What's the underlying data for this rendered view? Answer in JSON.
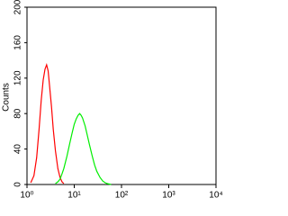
{
  "chart_data": {
    "type": "line",
    "y_label": "Counts",
    "xscale": "log",
    "xlim": [
      1,
      10000
    ],
    "ylim": [
      0,
      200
    ],
    "xticks": [
      {
        "value": 1,
        "label": "10⁰"
      },
      {
        "value": 10,
        "label": "10¹"
      },
      {
        "value": 100,
        "label": "10²"
      },
      {
        "value": 1000,
        "label": "10³"
      },
      {
        "value": 10000,
        "label": "10⁴"
      }
    ],
    "yticks": [
      0,
      40,
      80,
      120,
      160,
      200
    ],
    "x": [
      1.2,
      1.4,
      1.6,
      1.8,
      2.0,
      2.2,
      2.4,
      2.6,
      2.8,
      3.0,
      3.3,
      3.6,
      4,
      4.5,
      5,
      5.5,
      6,
      7,
      8,
      9,
      10,
      11,
      12,
      13,
      14,
      15,
      17,
      19,
      21,
      24,
      27,
      30,
      35,
      40,
      45,
      50,
      55,
      60
    ],
    "series": [
      {
        "color": "#ff0000",
        "values": [
          2,
          10,
          30,
          62,
          95,
          118,
          130,
          135,
          128,
          112,
          88,
          62,
          38,
          18,
          8,
          3,
          1,
          null,
          null,
          null,
          null,
          null,
          null,
          null,
          null,
          null,
          null,
          null,
          null,
          null,
          null,
          null,
          null,
          null,
          null,
          null,
          null,
          null
        ]
      },
      {
        "color": "#00ee00",
        "values": [
          null,
          null,
          null,
          null,
          null,
          null,
          null,
          null,
          null,
          null,
          null,
          null,
          1,
          3,
          6,
          12,
          18,
          32,
          46,
          58,
          68,
          74,
          78,
          80,
          78,
          75,
          66,
          55,
          45,
          32,
          22,
          15,
          8,
          4,
          2,
          1,
          0.5,
          0
        ]
      }
    ]
  }
}
